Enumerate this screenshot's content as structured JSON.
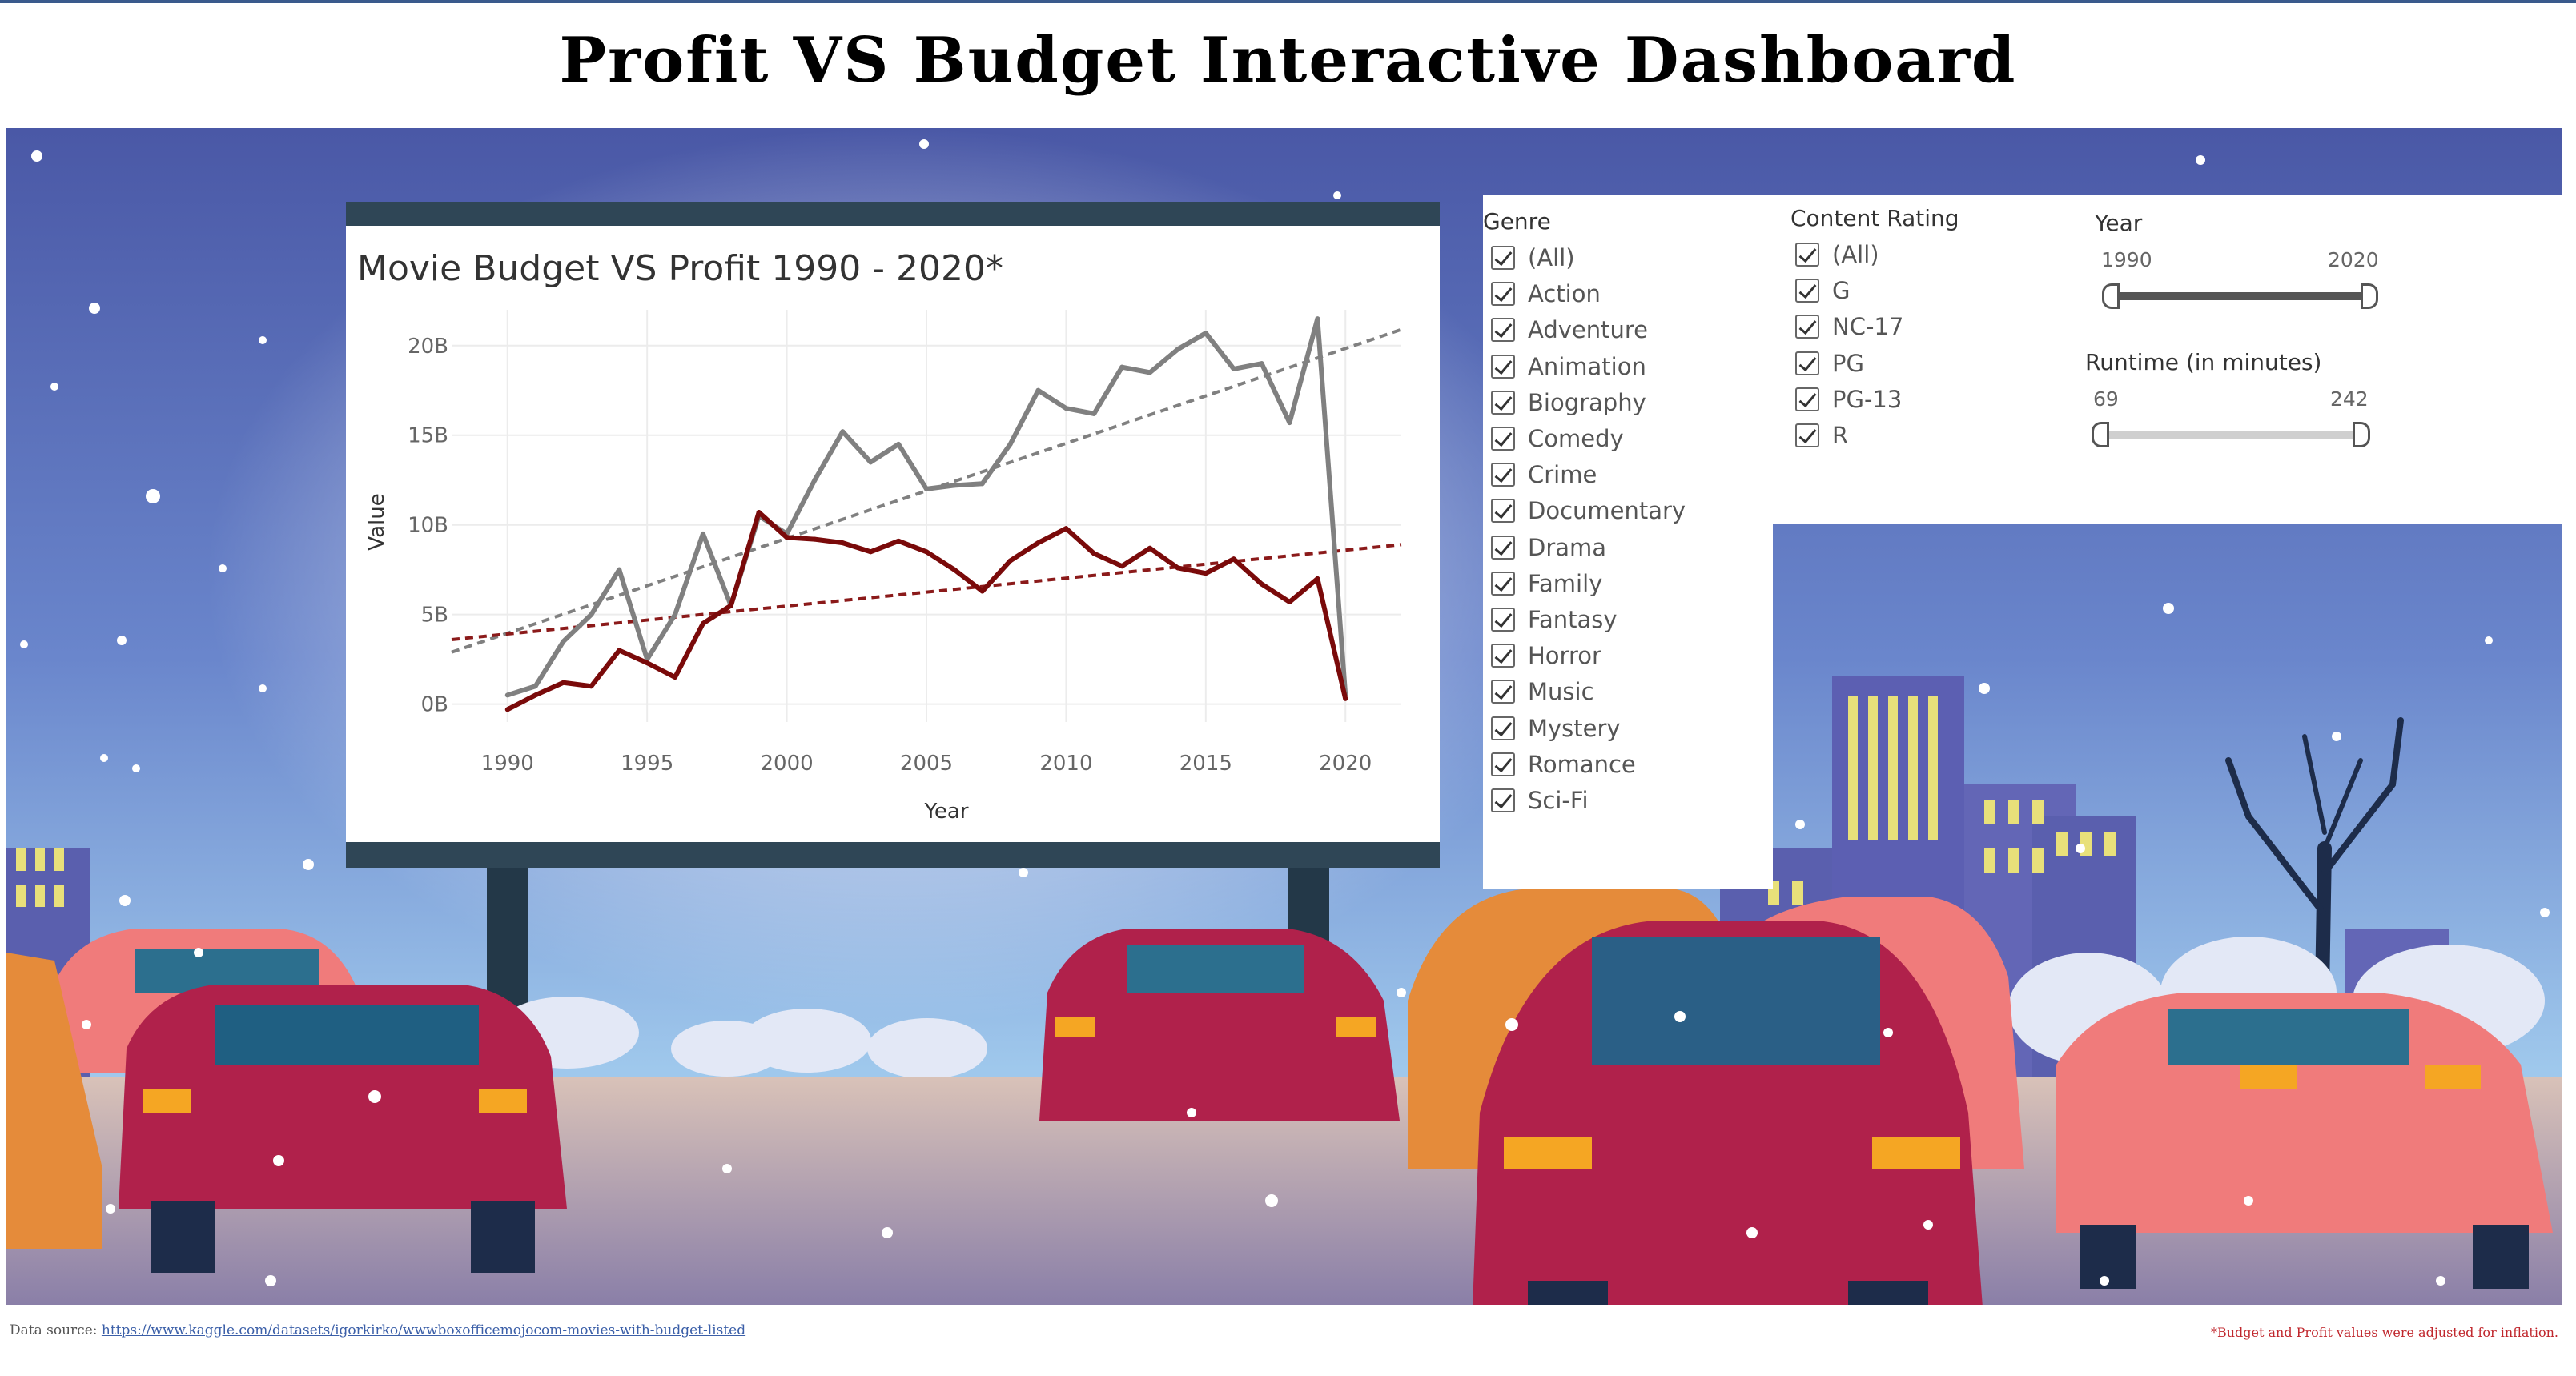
{
  "page_title": "Profit VS Budget Interactive Dashboard",
  "chart_data": {
    "type": "line",
    "title": "Movie Budget VS Profit 1990 - 2020*",
    "xlabel": "Year",
    "ylabel": "Value",
    "xlim": [
      1988,
      2022
    ],
    "ylim": [
      -1,
      22
    ],
    "x_ticks": [
      1990,
      1995,
      2000,
      2005,
      2010,
      2015,
      2020
    ],
    "y_ticks": [
      {
        "value": 0,
        "label": "0B"
      },
      {
        "value": 5,
        "label": "5B"
      },
      {
        "value": 10,
        "label": "10B"
      },
      {
        "value": 15,
        "label": "15B"
      },
      {
        "value": 20,
        "label": "20B"
      }
    ],
    "grid": true,
    "series": [
      {
        "color": "#808080",
        "x": [
          1990,
          1991,
          1992,
          1993,
          1994,
          1995,
          1996,
          1997,
          1998,
          1999,
          2000,
          2001,
          2002,
          2003,
          2004,
          2005,
          2006,
          2007,
          2008,
          2009,
          2010,
          2011,
          2012,
          2013,
          2014,
          2015,
          2016,
          2017,
          2018,
          2019,
          2020
        ],
        "values": [
          0.5,
          1.0,
          3.5,
          5.0,
          7.5,
          2.5,
          5.0,
          9.5,
          5.5,
          10.5,
          9.5,
          12.5,
          15.2,
          13.5,
          14.5,
          12.0,
          12.2,
          12.3,
          14.5,
          17.5,
          16.5,
          16.2,
          18.8,
          18.5,
          19.8,
          20.7,
          18.7,
          19.0,
          15.7,
          21.5,
          0.5
        ]
      },
      {
        "color": "#7a0a0a",
        "x": [
          1990,
          1991,
          1992,
          1993,
          1994,
          1995,
          1996,
          1997,
          1998,
          1999,
          2000,
          2001,
          2002,
          2003,
          2004,
          2005,
          2006,
          2007,
          2008,
          2009,
          2010,
          2011,
          2012,
          2013,
          2014,
          2015,
          2016,
          2017,
          2018,
          2019,
          2020
        ],
        "values": [
          -0.3,
          0.5,
          1.2,
          1.0,
          3.0,
          2.3,
          1.5,
          4.5,
          5.5,
          10.7,
          9.3,
          9.2,
          9.0,
          8.5,
          9.1,
          8.5,
          7.5,
          6.3,
          8.0,
          9.0,
          9.8,
          8.4,
          7.7,
          8.7,
          7.6,
          7.3,
          8.1,
          6.7,
          5.7,
          7.0,
          0.3
        ]
      }
    ],
    "trend_lines": [
      {
        "color": "#808080",
        "x": [
          1988,
          2022
        ],
        "values": [
          2.9,
          20.9
        ]
      },
      {
        "color": "#8b1a1a",
        "x": [
          1988,
          2022
        ],
        "values": [
          3.6,
          8.9
        ]
      }
    ]
  },
  "filters": {
    "genre": {
      "label": "Genre",
      "items": [
        "(All)",
        "Action",
        "Adventure",
        "Animation",
        "Biography",
        "Comedy",
        "Crime",
        "Documentary",
        "Drama",
        "Family",
        "Fantasy",
        "Horror",
        "Music",
        "Mystery",
        "Romance",
        "Sci-Fi"
      ]
    },
    "content_rating": {
      "label": "Content Rating",
      "items": [
        "(All)",
        "G",
        "NC-17",
        "PG",
        "PG-13",
        "R"
      ]
    },
    "year": {
      "label": "Year",
      "min": "1990",
      "max": "2020"
    },
    "runtime": {
      "label": "Runtime (in minutes)",
      "min": "69",
      "max": "242"
    }
  },
  "footer": {
    "source_label": "Data source:",
    "source_url": "https://www.kaggle.com/datasets/igorkirko/wwwboxofficemojocom-movies-with-budget-listed",
    "note": "*Budget and Profit values were adjusted for inflation."
  },
  "colors": {
    "sky_top": "#4f5ea8",
    "sky_bottom": "#9cc7ea",
    "budget_line": "#808080",
    "profit_line": "#7a0a0a",
    "car_red": "#b0214b",
    "car_pink": "#f07b7b"
  }
}
